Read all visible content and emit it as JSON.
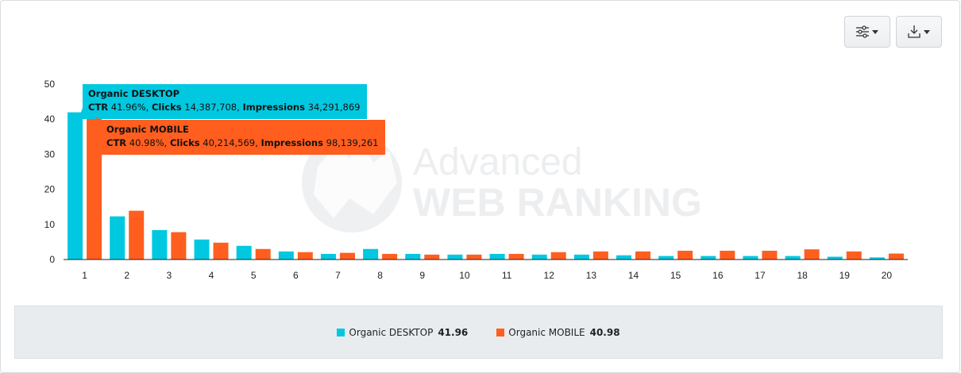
{
  "toolbar": {
    "filter_icon": "sliders-icon",
    "download_icon": "download-icon"
  },
  "watermark": {
    "line1": "Advanced",
    "line2": "WEB RANKING"
  },
  "colors": {
    "desktop": "#00c8e0",
    "mobile": "#ff5e1f"
  },
  "chart_data": {
    "type": "bar",
    "categories": [
      "1",
      "2",
      "3",
      "4",
      "5",
      "6",
      "7",
      "8",
      "9",
      "10",
      "11",
      "12",
      "13",
      "14",
      "15",
      "16",
      "17",
      "18",
      "19",
      "20"
    ],
    "ylim": [
      0,
      50
    ],
    "yticks": [
      0,
      10,
      20,
      30,
      40,
      50
    ],
    "grid": false,
    "legend_position": "bottom",
    "series": [
      {
        "name": "Organic DESKTOP",
        "color": "#00c8e0",
        "values": [
          41.96,
          12.3,
          8.4,
          5.7,
          3.9,
          2.3,
          1.6,
          3.0,
          1.6,
          1.4,
          1.6,
          1.4,
          1.4,
          1.2,
          1.0,
          1.0,
          1.0,
          1.0,
          0.8,
          0.6
        ]
      },
      {
        "name": "Organic MOBILE",
        "color": "#ff5e1f",
        "values": [
          40.98,
          13.9,
          7.8,
          4.8,
          3.0,
          2.1,
          1.9,
          1.6,
          1.4,
          1.4,
          1.6,
          2.1,
          2.3,
          2.3,
          2.5,
          2.5,
          2.5,
          2.9,
          2.3,
          1.7
        ]
      }
    ],
    "legend": [
      {
        "label": "Organic DESKTOP",
        "value": "41.96"
      },
      {
        "label": "Organic MOBILE",
        "value": "40.98"
      }
    ],
    "tooltips": [
      {
        "title": "Organic DESKTOP",
        "ctr_label": "CTR",
        "ctr": "41.96%",
        "clicks_label": "Clicks",
        "clicks": "14,387,708",
        "impressions_label": "Impressions",
        "impressions": "34,291,869"
      },
      {
        "title": "Organic MOBILE",
        "ctr_label": "CTR",
        "ctr": "40.98%",
        "clicks_label": "Clicks",
        "clicks": "40,214,569",
        "impressions_label": "Impressions",
        "impressions": "98,139,261"
      }
    ]
  }
}
